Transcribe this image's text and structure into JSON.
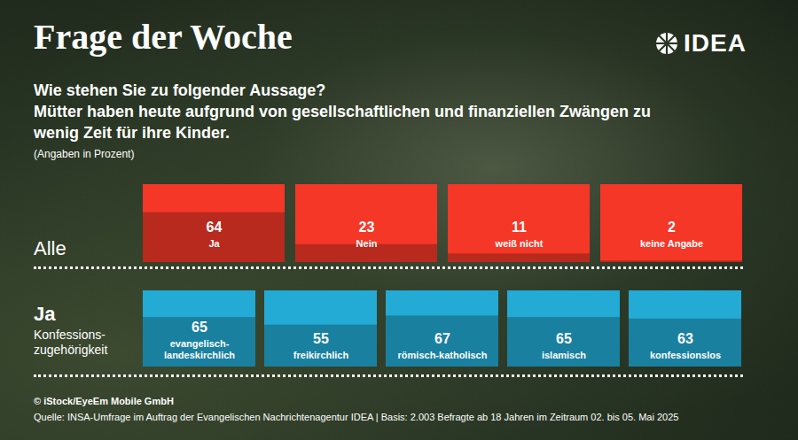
{
  "header": {
    "title": "Frage der Woche",
    "logo": "IDEA",
    "question": [
      "Wie stehen Sie zu folgender Aussage?",
      "Mütter haben heute aufgrund von gesellschaftlichen und finanziellen Zwängen zu wenig Zeit für ihre Kinder."
    ],
    "note": "(Angaben in Prozent)"
  },
  "chart_data": [
    {
      "type": "bar",
      "title": "Alle",
      "categories": [
        "Ja",
        "Nein",
        "weiß nicht",
        "keine Angabe"
      ],
      "values": [
        64,
        23,
        11,
        2
      ],
      "color": "#b8291e",
      "ylim": [
        0,
        100
      ],
      "data_labels": true,
      "tick_labels": false
    },
    {
      "type": "bar",
      "title": "Ja",
      "subtitle": "Konfessions-zugehörigkeit",
      "categories": [
        "evangelisch-landeskirchlich",
        "freikirchlich",
        "römisch-katholisch",
        "islamisch",
        "konfessionslos"
      ],
      "values": [
        65,
        55,
        67,
        65,
        63
      ],
      "color": "#1a80a0",
      "ylim": [
        0,
        100
      ],
      "data_labels": true,
      "tick_labels": false
    }
  ],
  "footer": {
    "credit": "© iStock/EyeEm Mobile GmbH",
    "source": "Quelle: INSA-Umfrage im Auftrag der Evangelischen Nachrichtenagentur IDEA | Basis: 2.003 Befragte ab 18 Jahren im Zeitraum 02. bis 05. Mai 2025"
  }
}
